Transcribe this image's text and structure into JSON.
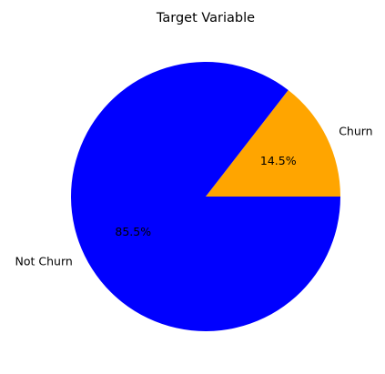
{
  "chart_data": {
    "type": "pie",
    "title": "Target Variable",
    "slices": [
      {
        "label": "Churn",
        "value": 14.5,
        "pct_label": "14.5%",
        "color": "#ffa500"
      },
      {
        "label": "Not Churn",
        "value": 85.5,
        "pct_label": "85.5%",
        "color": "#0000ff"
      }
    ],
    "start_angle_deg": 0,
    "direction": "counterclockwise"
  }
}
